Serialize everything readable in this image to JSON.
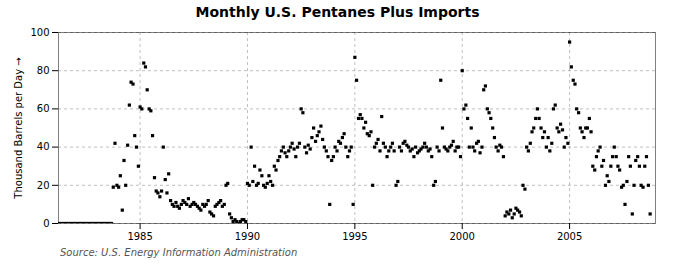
{
  "chart_data": {
    "type": "scatter",
    "title": "Monthly U.S. Pentanes Plus Imports",
    "ylabel": "Thousand Barrels per Day",
    "source": "Source: U.S. Energy Information Administration",
    "marker": "square",
    "grid": true,
    "xlim": [
      1981.2,
      2009.0
    ],
    "xticks": [
      1985,
      1990,
      1995,
      2000,
      2005
    ],
    "ylim": [
      0,
      100
    ],
    "yticks": [
      0,
      20,
      40,
      60,
      80,
      100
    ],
    "x": [
      1981.25,
      1981.33,
      1981.42,
      1981.5,
      1981.58,
      1981.67,
      1981.75,
      1981.83,
      1981.92,
      1982.0,
      1982.08,
      1982.17,
      1982.25,
      1982.33,
      1982.42,
      1982.5,
      1982.58,
      1982.67,
      1982.75,
      1982.83,
      1982.92,
      1983.0,
      1983.08,
      1983.17,
      1983.25,
      1983.33,
      1983.42,
      1983.5,
      1983.58,
      1983.67,
      1983.75,
      1983.83,
      1983.92,
      1984.0,
      1984.08,
      1984.17,
      1984.25,
      1984.33,
      1984.42,
      1984.5,
      1984.58,
      1984.67,
      1984.75,
      1984.83,
      1984.92,
      1985.0,
      1985.08,
      1985.17,
      1985.25,
      1985.33,
      1985.42,
      1985.5,
      1985.58,
      1985.67,
      1985.75,
      1985.83,
      1985.92,
      1986.0,
      1986.08,
      1986.17,
      1986.25,
      1986.33,
      1986.42,
      1986.5,
      1986.58,
      1986.67,
      1986.75,
      1986.83,
      1986.92,
      1987.0,
      1987.08,
      1987.17,
      1987.25,
      1987.33,
      1987.42,
      1987.5,
      1987.58,
      1987.67,
      1987.75,
      1987.83,
      1987.92,
      1988.0,
      1988.08,
      1988.17,
      1988.25,
      1988.33,
      1988.42,
      1988.5,
      1988.58,
      1988.67,
      1988.75,
      1988.83,
      1988.92,
      1989.0,
      1989.08,
      1989.17,
      1989.25,
      1989.33,
      1989.42,
      1989.5,
      1989.58,
      1989.67,
      1989.75,
      1989.83,
      1989.92,
      1990.0,
      1990.08,
      1990.17,
      1990.25,
      1990.33,
      1990.42,
      1990.5,
      1990.58,
      1990.67,
      1990.75,
      1990.83,
      1990.92,
      1991.0,
      1991.08,
      1991.17,
      1991.25,
      1991.33,
      1991.42,
      1991.5,
      1991.58,
      1991.67,
      1991.75,
      1991.83,
      1991.92,
      1992.0,
      1992.08,
      1992.17,
      1992.25,
      1992.33,
      1992.42,
      1992.5,
      1992.58,
      1992.67,
      1992.75,
      1992.83,
      1992.92,
      1993.0,
      1993.08,
      1993.17,
      1993.25,
      1993.33,
      1993.42,
      1993.5,
      1993.58,
      1993.67,
      1993.75,
      1993.83,
      1993.92,
      1994.0,
      1994.08,
      1994.17,
      1994.25,
      1994.33,
      1994.42,
      1994.5,
      1994.58,
      1994.67,
      1994.75,
      1994.83,
      1994.92,
      1995.0,
      1995.08,
      1995.17,
      1995.25,
      1995.33,
      1995.42,
      1995.5,
      1995.58,
      1995.67,
      1995.75,
      1995.83,
      1995.92,
      1996.0,
      1996.08,
      1996.17,
      1996.25,
      1996.33,
      1996.42,
      1996.5,
      1996.58,
      1996.67,
      1996.75,
      1996.83,
      1996.92,
      1997.0,
      1997.08,
      1997.17,
      1997.25,
      1997.33,
      1997.42,
      1997.5,
      1997.58,
      1997.67,
      1997.75,
      1997.83,
      1997.92,
      1998.0,
      1998.08,
      1998.17,
      1998.25,
      1998.33,
      1998.42,
      1998.5,
      1998.58,
      1998.67,
      1998.75,
      1998.83,
      1998.92,
      1999.0,
      1999.08,
      1999.17,
      1999.25,
      1999.33,
      1999.42,
      1999.5,
      1999.58,
      1999.67,
      1999.75,
      1999.83,
      1999.92,
      2000.0,
      2000.08,
      2000.17,
      2000.25,
      2000.33,
      2000.42,
      2000.5,
      2000.58,
      2000.67,
      2000.75,
      2000.83,
      2000.92,
      2001.0,
      2001.08,
      2001.17,
      2001.25,
      2001.33,
      2001.42,
      2001.5,
      2001.58,
      2001.67,
      2001.75,
      2001.83,
      2001.92,
      2002.0,
      2002.08,
      2002.17,
      2002.25,
      2002.33,
      2002.42,
      2002.5,
      2002.58,
      2002.67,
      2002.75,
      2002.83,
      2002.92,
      2003.0,
      2003.08,
      2003.17,
      2003.25,
      2003.33,
      2003.42,
      2003.5,
      2003.58,
      2003.67,
      2003.75,
      2003.83,
      2003.92,
      2004.0,
      2004.08,
      2004.17,
      2004.25,
      2004.33,
      2004.42,
      2004.5,
      2004.58,
      2004.67,
      2004.75,
      2004.83,
      2004.92,
      2005.0,
      2005.08,
      2005.17,
      2005.25,
      2005.33,
      2005.42,
      2005.5,
      2005.58,
      2005.67,
      2005.75,
      2005.83,
      2005.92,
      2006.0,
      2006.08,
      2006.17,
      2006.25,
      2006.33,
      2006.42,
      2006.5,
      2006.58,
      2006.67,
      2006.75,
      2006.83,
      2006.92,
      2007.0,
      2007.08,
      2007.17,
      2007.25,
      2007.33,
      2007.42,
      2007.5,
      2007.58,
      2007.67,
      2007.75,
      2007.83,
      2007.92,
      2008.0,
      2008.08,
      2008.17,
      2008.25,
      2008.33,
      2008.42,
      2008.5,
      2008.58,
      2008.67,
      2008.75
    ],
    "values": [
      0,
      0,
      0,
      0,
      0,
      0,
      0,
      0,
      0,
      0,
      0,
      0,
      0,
      0,
      0,
      0,
      0,
      0,
      0,
      0,
      0,
      0,
      0,
      0,
      0,
      0,
      0,
      0,
      0,
      0,
      19,
      42,
      20,
      19,
      25,
      7,
      33,
      20,
      41,
      62,
      74,
      73,
      46,
      40,
      30,
      61,
      60,
      84,
      82,
      70,
      60,
      59,
      46,
      24,
      17,
      16,
      14,
      17,
      40,
      23,
      16,
      26,
      12,
      10,
      9,
      11,
      9,
      8,
      10,
      12,
      11,
      10,
      13,
      9,
      10,
      11,
      10,
      9,
      8,
      7,
      10,
      9,
      10,
      12,
      6,
      5,
      4,
      9,
      10,
      11,
      12,
      9,
      10,
      20,
      21,
      5,
      3,
      1,
      2,
      1,
      0,
      1,
      2,
      2,
      1,
      21,
      20,
      40,
      22,
      30,
      20,
      21,
      28,
      25,
      20,
      19,
      21,
      25,
      22,
      20,
      30,
      28,
      33,
      35,
      38,
      40,
      37,
      35,
      38,
      40,
      42,
      39,
      35,
      40,
      42,
      60,
      58,
      40,
      37,
      41,
      39,
      45,
      50,
      43,
      46,
      48,
      51,
      44,
      40,
      38,
      35,
      10,
      33,
      35,
      40,
      38,
      43,
      42,
      45,
      47,
      40,
      35,
      38,
      40,
      10,
      87,
      75,
      55,
      57,
      55,
      50,
      53,
      47,
      46,
      48,
      20,
      40,
      42,
      44,
      38,
      56,
      42,
      40,
      35,
      38,
      40,
      42,
      38,
      20,
      22,
      40,
      38,
      42,
      43,
      41,
      40,
      38,
      39,
      35,
      40,
      37,
      38,
      39,
      40,
      42,
      40,
      38,
      39,
      35,
      20,
      22,
      40,
      38,
      75,
      50,
      40,
      39,
      38,
      40,
      41,
      43,
      38,
      40,
      40,
      35,
      80,
      60,
      62,
      55,
      40,
      50,
      40,
      38,
      42,
      43,
      37,
      40,
      70,
      72,
      60,
      58,
      55,
      50,
      45,
      40,
      38,
      41,
      40,
      35,
      4,
      6,
      5,
      7,
      3,
      5,
      8,
      7,
      6,
      4,
      20,
      18,
      40,
      38,
      42,
      48,
      50,
      55,
      60,
      55,
      50,
      45,
      48,
      40,
      45,
      38,
      42,
      60,
      62,
      50,
      48,
      52,
      49,
      40,
      45,
      42,
      95,
      82,
      75,
      73,
      60,
      58,
      50,
      48,
      45,
      50,
      50,
      55,
      48,
      30,
      28,
      35,
      38,
      40,
      30,
      33,
      20,
      25,
      22,
      30,
      35,
      40,
      35,
      30,
      28,
      19,
      20,
      10,
      22,
      35,
      30,
      5,
      20,
      33,
      35,
      30,
      20,
      19,
      30,
      35,
      20,
      5
    ]
  }
}
